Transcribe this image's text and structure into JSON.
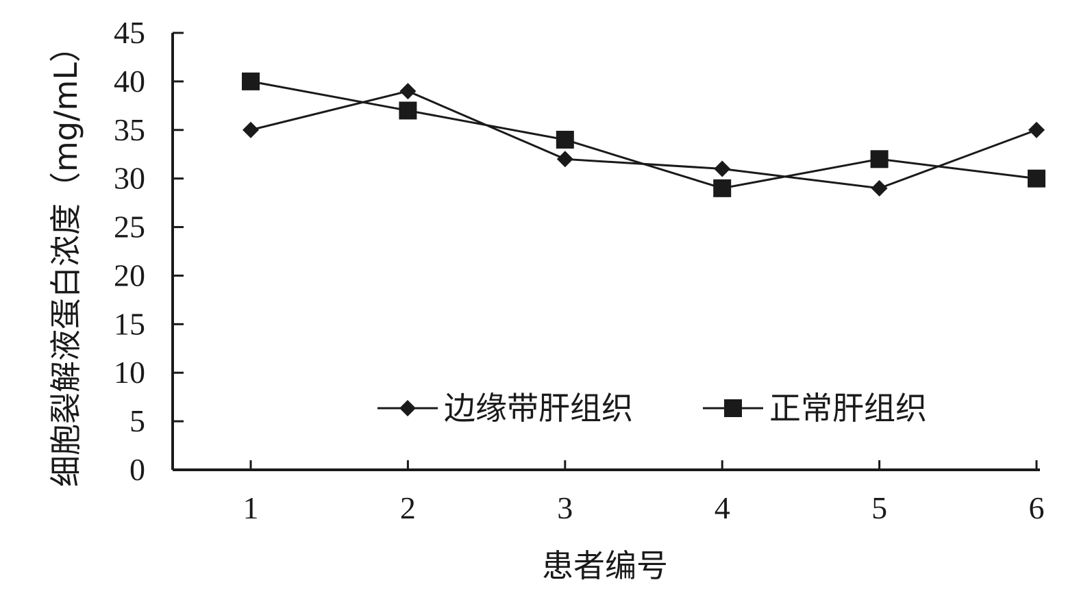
{
  "chart_data": {
    "type": "line",
    "title": "",
    "xlabel": "患者编号",
    "ylabel": "细胞裂解液蛋白浓度（mg/mL）",
    "x": [
      1,
      2,
      3,
      4,
      5,
      6
    ],
    "xticks": [
      "1",
      "2",
      "3",
      "4",
      "5",
      "6"
    ],
    "ylim": [
      0,
      45
    ],
    "yticks": [
      0,
      5,
      10,
      15,
      20,
      25,
      30,
      35,
      40,
      45
    ],
    "grid": false,
    "legend_position": "bottom-right",
    "series": [
      {
        "name": "边缘带肝组织",
        "marker": "diamond",
        "color": "#1a1a1a",
        "values": [
          35,
          39,
          32,
          31,
          29,
          35
        ]
      },
      {
        "name": "正常肝组织",
        "marker": "square",
        "color": "#1a1a1a",
        "values": [
          40,
          37,
          34,
          29,
          32,
          30
        ]
      }
    ]
  }
}
